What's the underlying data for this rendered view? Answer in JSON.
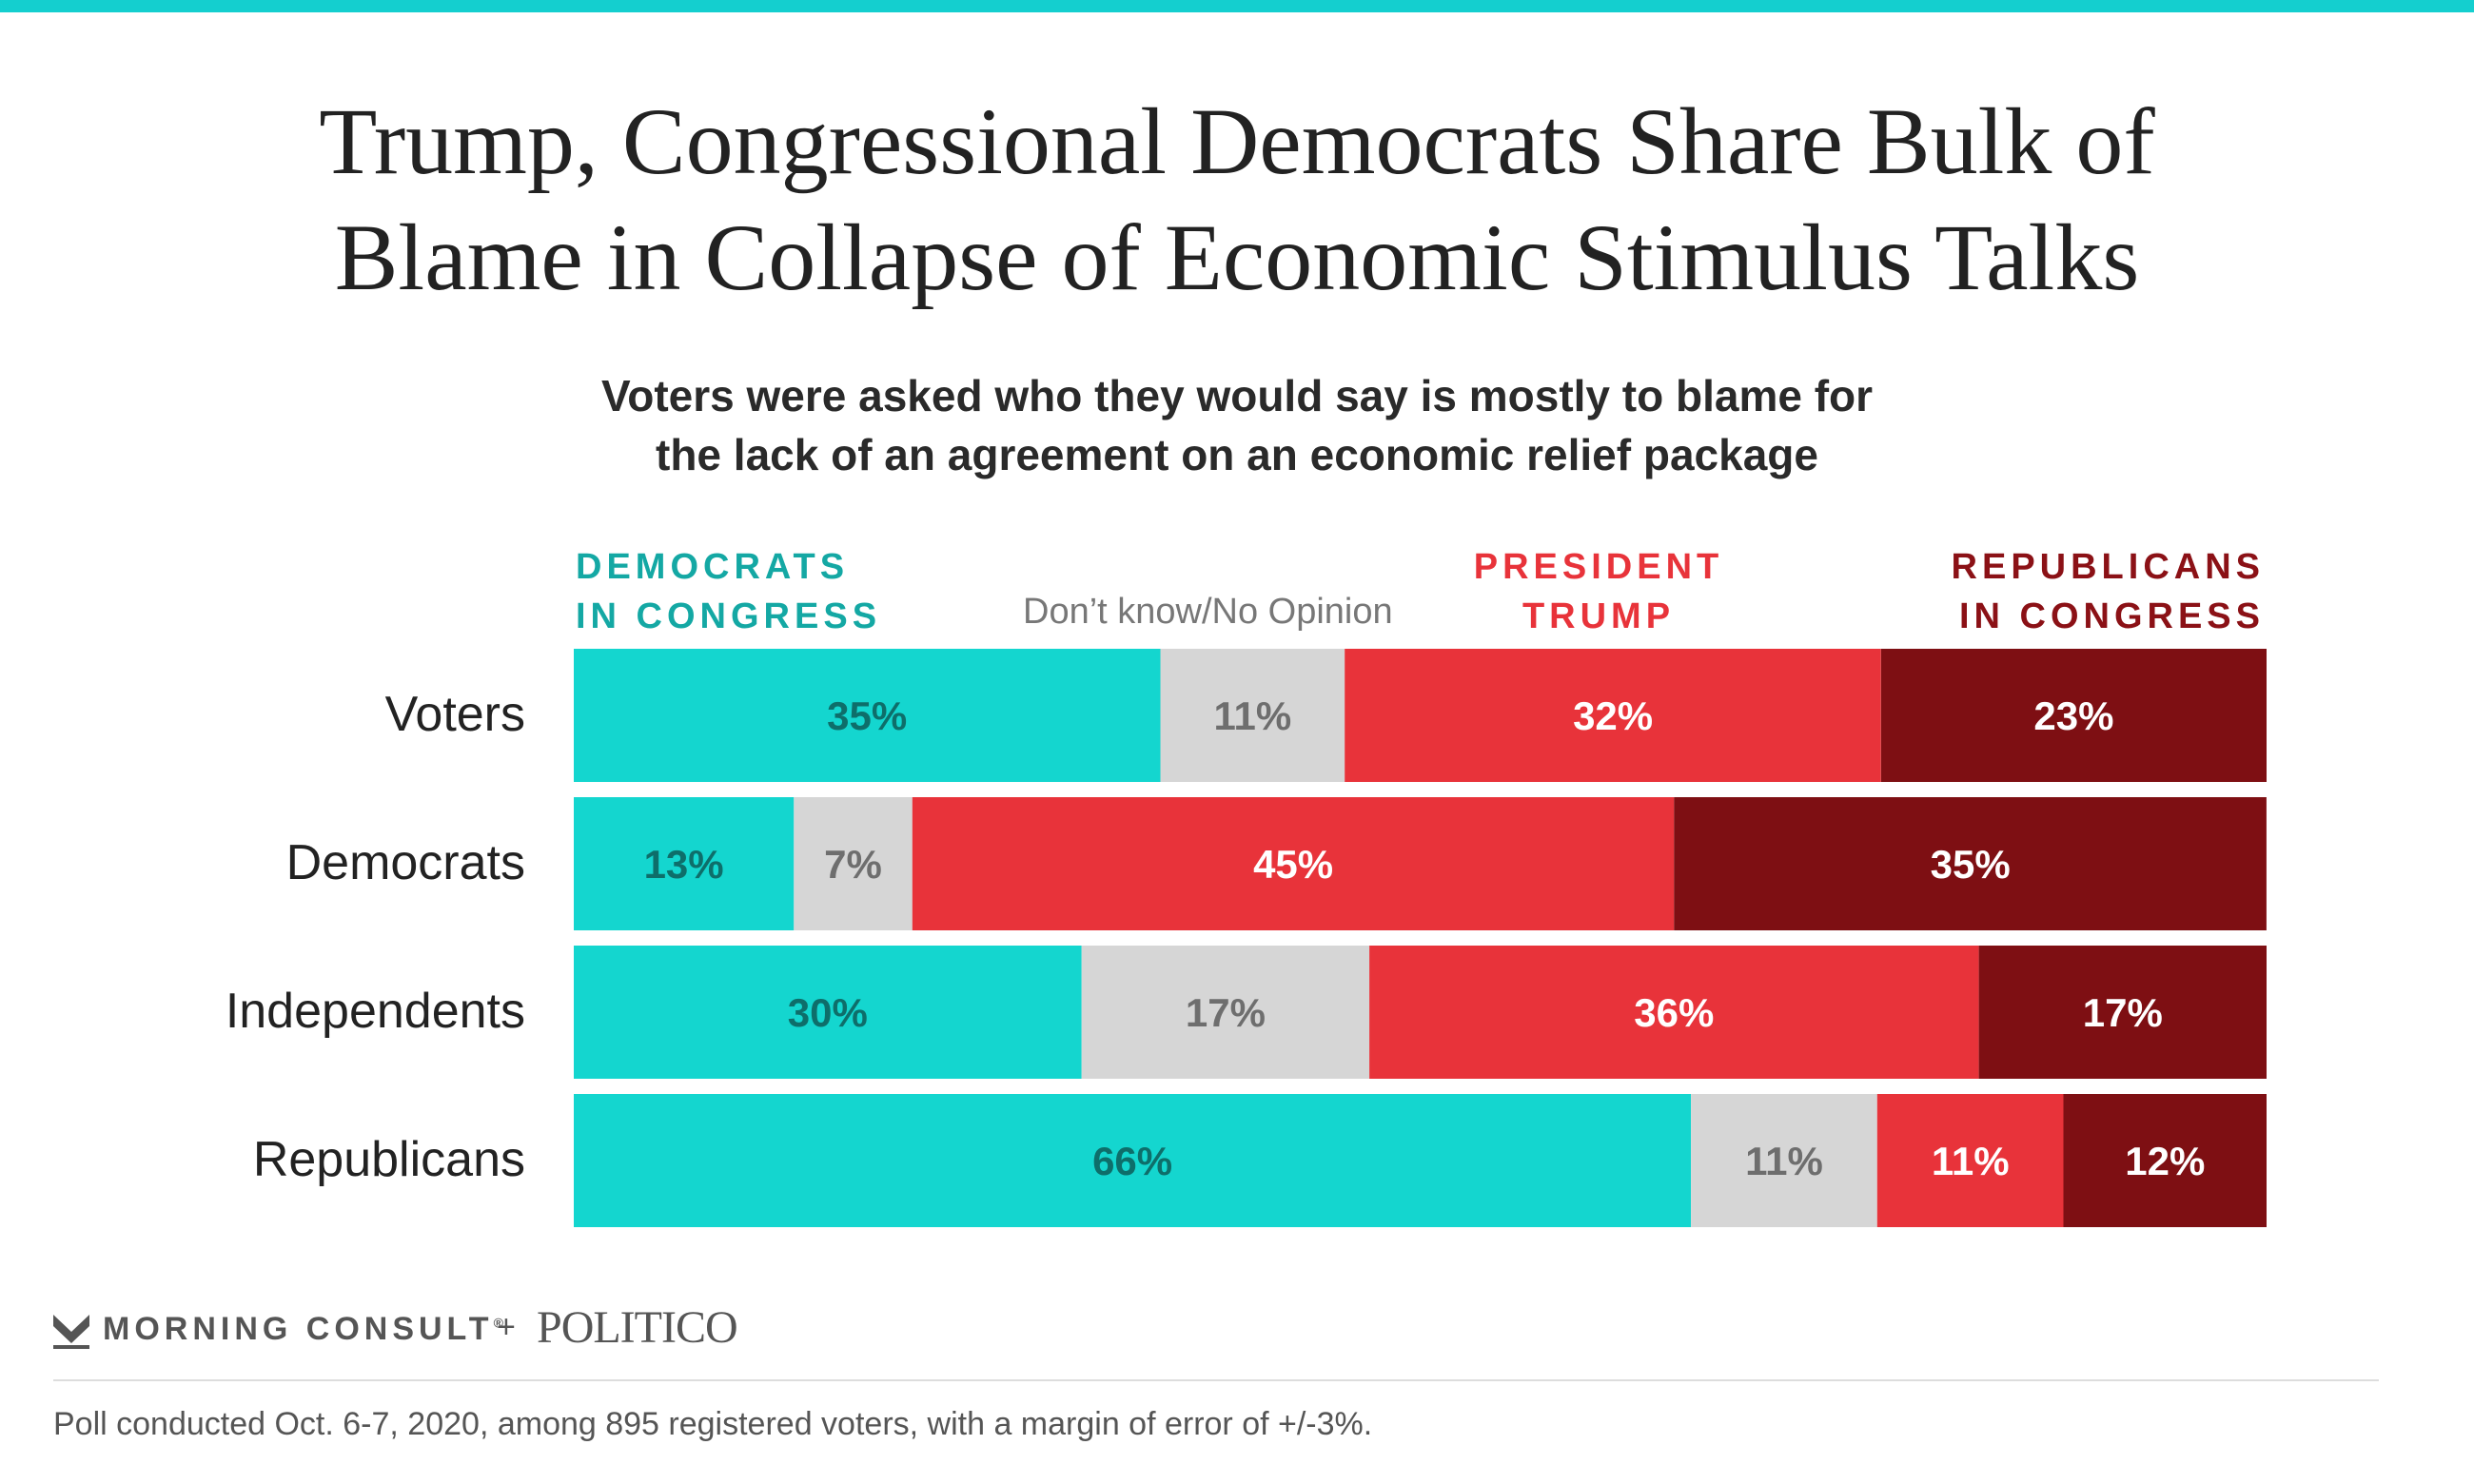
{
  "title_lines": [
    "Trump, Congressional Democrats Share Bulk of",
    "Blame in Collapse of Economic Stimulus Talks"
  ],
  "subtitle_lines": [
    "Voters were asked who they would say is mostly to blame for",
    "the lack of an agreement on an economic relief package"
  ],
  "legend": {
    "dem": [
      "DEMOCRATS",
      "IN CONGRESS"
    ],
    "dk": "Don’t know/No Opinion",
    "trump": [
      "PRESIDENT",
      "TRUMP"
    ],
    "rep": [
      "REPUBLICANS",
      "IN CONGRESS"
    ]
  },
  "branding": {
    "morning_consult": "MORNING CONSULT",
    "registered_mark": "®",
    "plus": "+",
    "politico": "POLITICO"
  },
  "footnote": "Poll conducted Oct. 6-7, 2020, among 895 registered voters, with a margin of error of +/-3%.",
  "colors": {
    "dem": "#14D6CF",
    "dk": "#D6D6D6",
    "trump": "#E8333A",
    "rep": "#7E0F13",
    "dem_label": "#0E6E6A",
    "dk_label": "#6E6E6E",
    "trump_label": "#FFFFFF",
    "rep_label": "#FFFFFF",
    "accent_bar": "#14CFCF"
  },
  "chart_data": {
    "type": "bar",
    "orientation": "horizontal",
    "stacked": true,
    "categories": [
      "Voters",
      "Democrats",
      "Independents",
      "Republicans"
    ],
    "series": [
      {
        "name": "DEMOCRATS IN CONGRESS",
        "values": [
          35,
          13,
          30,
          66
        ],
        "labels": [
          "35%",
          "13%",
          "30%",
          "66%"
        ]
      },
      {
        "name": "Don’t know/No Opinion",
        "values": [
          11,
          7,
          17,
          11
        ],
        "labels": [
          "11%",
          "7%",
          "17%",
          "11%"
        ]
      },
      {
        "name": "PRESIDENT TRUMP",
        "values": [
          32,
          45,
          36,
          11
        ],
        "labels": [
          "32%",
          "45%",
          "36%",
          "11%"
        ]
      },
      {
        "name": "REPUBLICANS IN CONGRESS",
        "values": [
          23,
          35,
          17,
          12
        ],
        "labels": [
          "23%",
          "35%",
          "17%",
          "12%"
        ]
      }
    ],
    "legend_position": "top",
    "grid": false
  }
}
